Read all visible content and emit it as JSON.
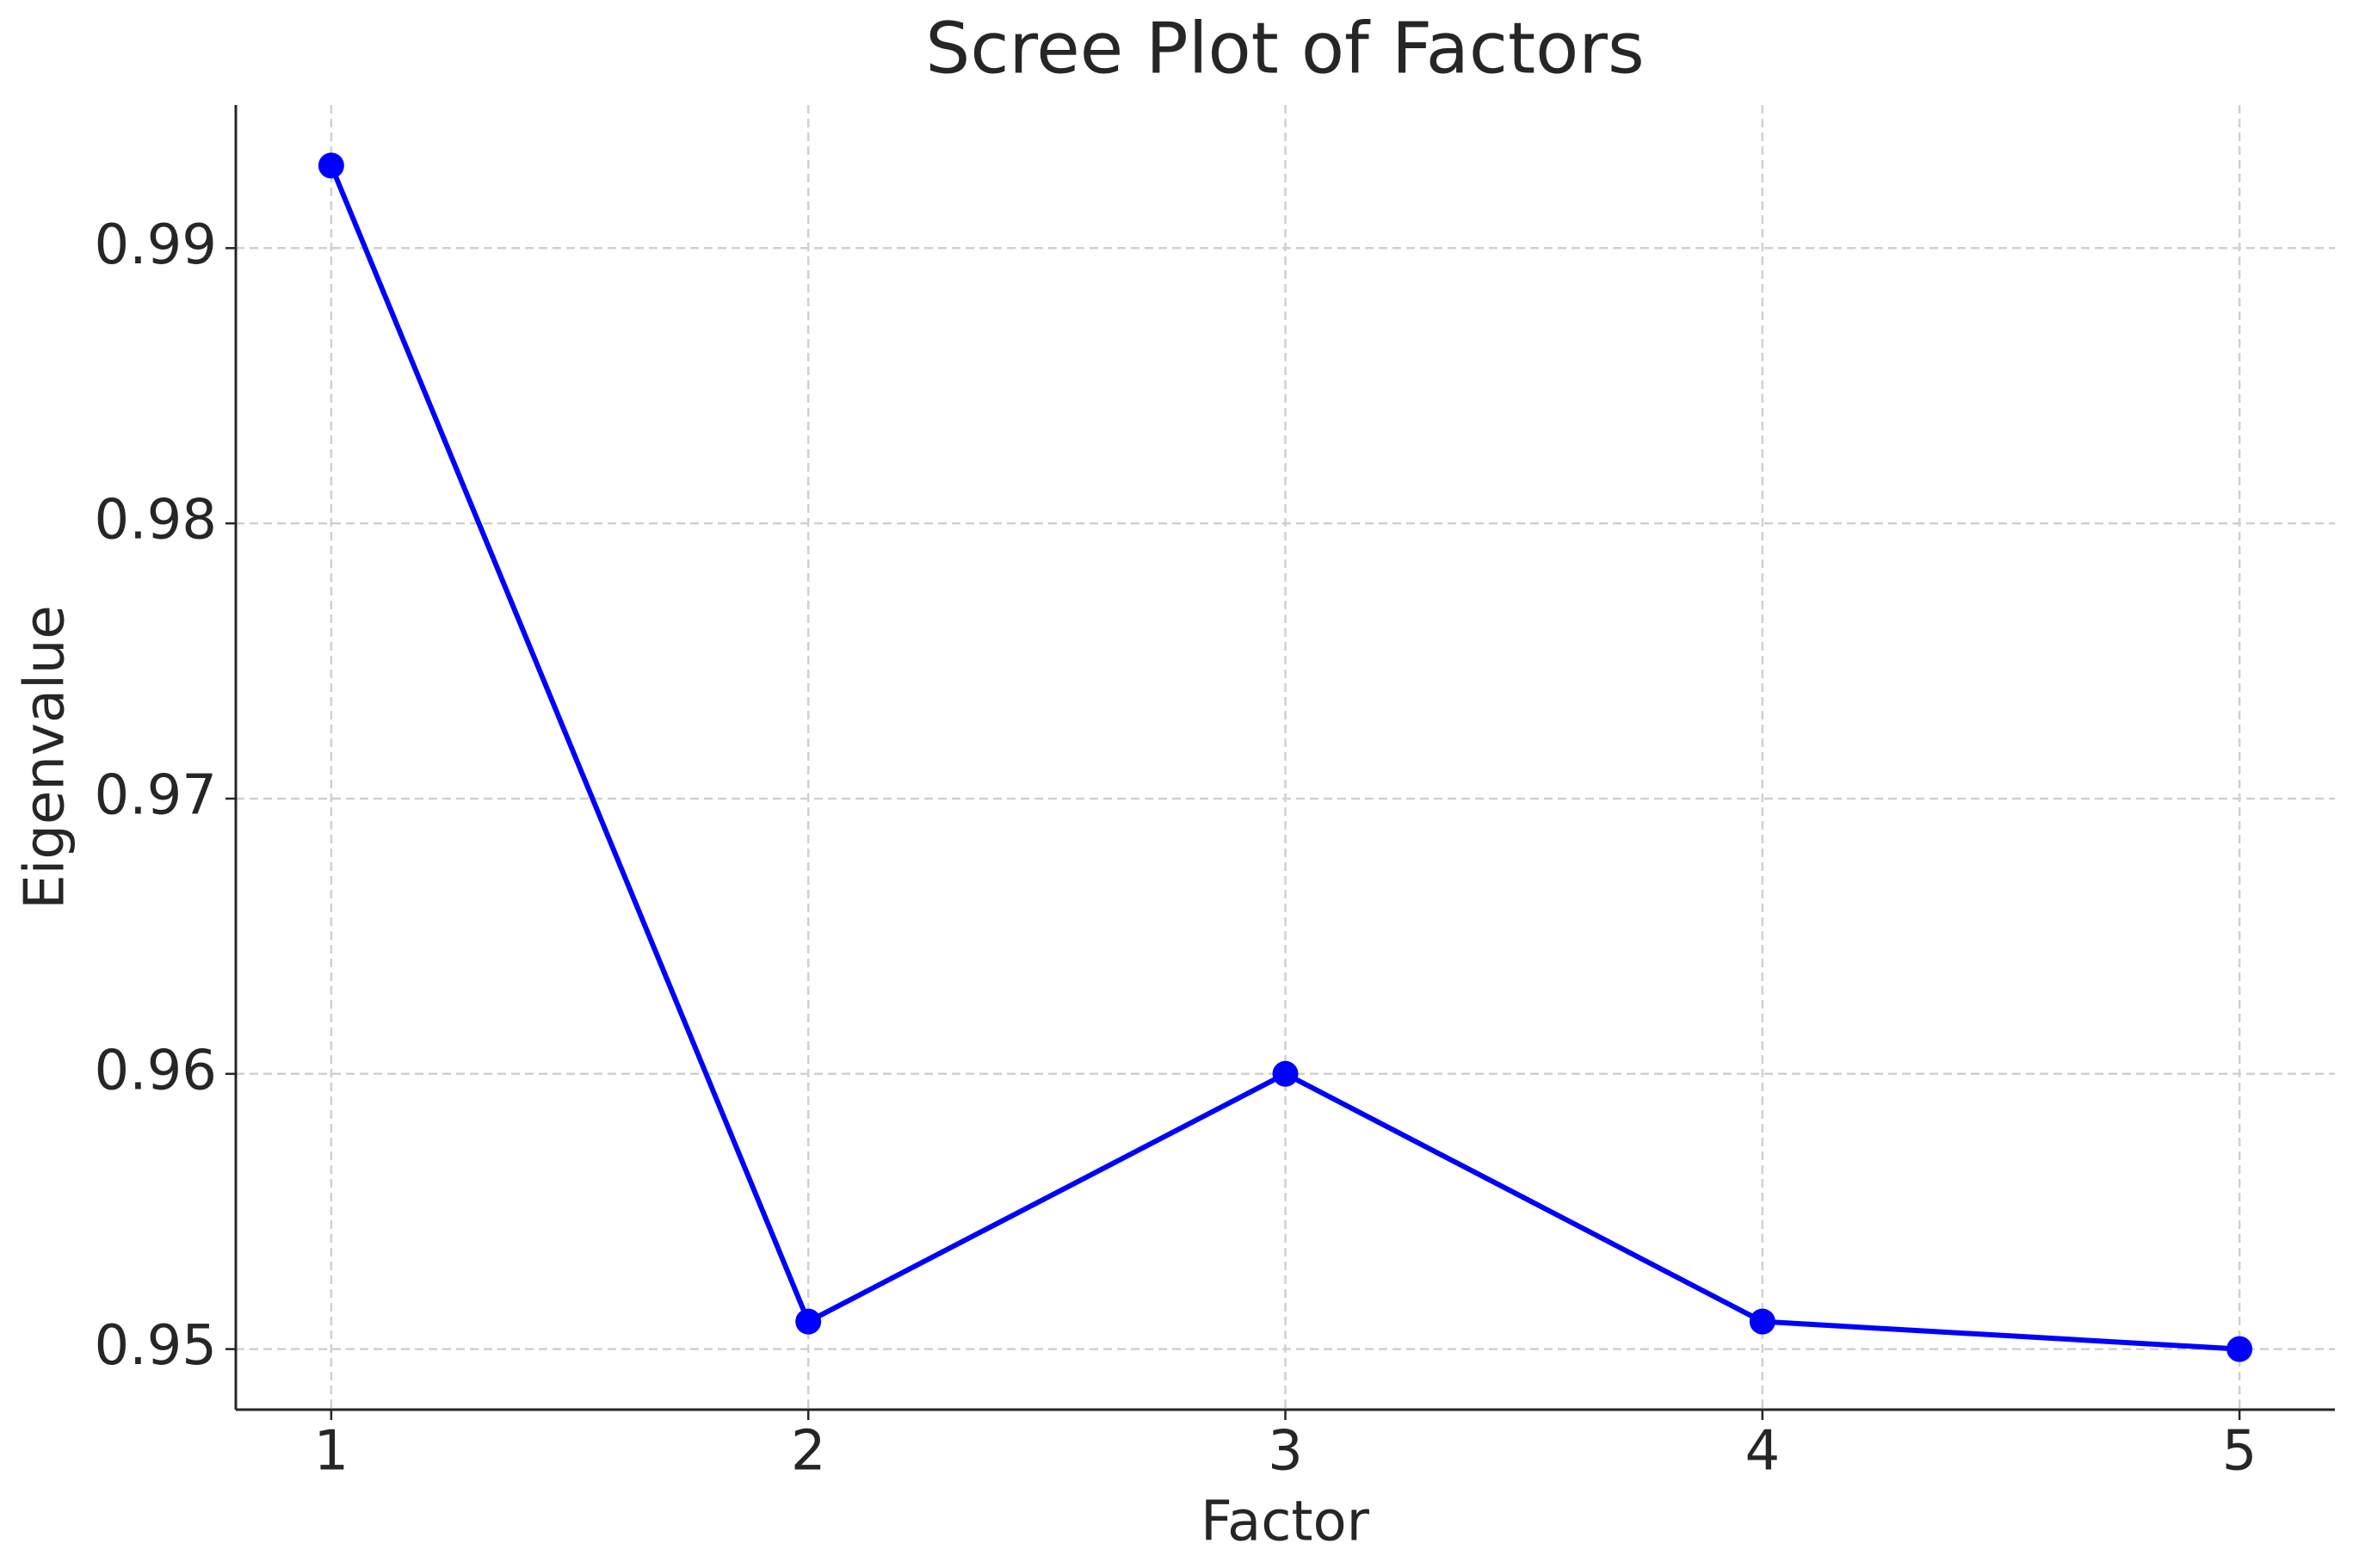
{
  "chart_data": {
    "type": "line",
    "title": "Scree Plot of Factors",
    "x_label": "Factor",
    "y_label": "Eigenvalue",
    "x": [
      1,
      2,
      3,
      4,
      5
    ],
    "values": [
      0.993,
      0.951,
      0.96,
      0.951,
      0.95
    ],
    "color": "#0000ff",
    "xlim": [
      0.8,
      5.2
    ],
    "xticks": [
      1,
      2,
      3,
      4,
      5
    ],
    "ylim": [
      0.9478,
      0.9952
    ],
    "yticks": [
      0.95,
      0.96,
      0.97,
      0.98,
      0.99
    ],
    "grid": true
  }
}
